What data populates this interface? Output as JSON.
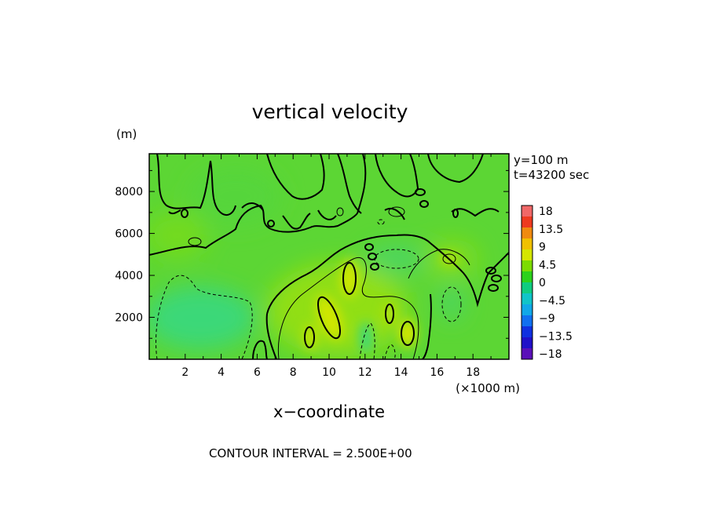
{
  "chart_data": {
    "type": "heatmap",
    "title": "vertical velocity",
    "xlabel": "x−coordinate",
    "ylabel_unit": "(m)",
    "x_unit": "(×1000 m)",
    "info": [
      "y=100 m",
      "t=43200 sec"
    ],
    "footer": "CONTOUR INTERVAL = 2.500E+00",
    "xlim": [
      0,
      20
    ],
    "ylim": [
      0,
      9800
    ],
    "x_ticks": [
      2,
      4,
      6,
      8,
      10,
      12,
      14,
      16,
      18
    ],
    "y_ticks": [
      2000,
      4000,
      6000,
      8000
    ],
    "contour_interval": 2.5,
    "colorbar": {
      "levels": [
        18,
        13.5,
        9,
        4.5,
        0,
        -4.5,
        -9,
        -13.5,
        -18
      ],
      "labels": [
        "18",
        "13.5",
        "9",
        "4.5",
        "0",
        "−4.5",
        "−9",
        "−13.5",
        "−18"
      ],
      "colors": [
        "#f06868",
        "#ee3a20",
        "#f08a10",
        "#f0c000",
        "#d4e600",
        "#7cdc00",
        "#2cd21c",
        "#10cc80",
        "#10c4c8",
        "#10a8e8",
        "#1070f0",
        "#1030e0",
        "#2010c8",
        "#5a10b8"
      ]
    },
    "features": [
      {
        "x": 11.0,
        "y": 4200,
        "value": 6
      },
      {
        "x": 10.1,
        "y": 2400,
        "value": 6.5
      },
      {
        "x": 14.3,
        "y": 1200,
        "value": 6
      },
      {
        "x": 13.3,
        "y": 2000,
        "value": 4
      },
      {
        "x": 8.9,
        "y": 1100,
        "value": 4
      },
      {
        "x": 16.8,
        "y": 4900,
        "value": 3
      },
      {
        "x": 2.3,
        "y": 2300,
        "value": -3
      },
      {
        "x": 13.7,
        "y": 4700,
        "value": -2.5
      },
      {
        "x": 16.7,
        "y": 2700,
        "value": -2.5
      },
      {
        "x": 12.1,
        "y": 900,
        "value": -2.5
      }
    ]
  }
}
